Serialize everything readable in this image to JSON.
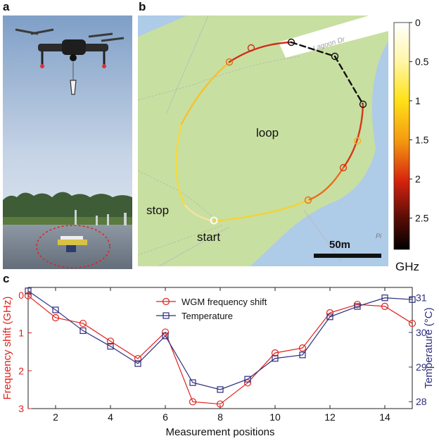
{
  "panels": {
    "a": {
      "letter": "a"
    },
    "b": {
      "letter": "b",
      "road_label": "Lagoon Dr",
      "corner_label": "Pi",
      "loop_label": "loop",
      "start_label": "start",
      "stop_label": "stop",
      "scale_label": "50m",
      "colorbar": {
        "ticks": [
          "0",
          "0.5",
          "1",
          "1.5",
          "2",
          "2.5"
        ],
        "tick_values": [
          0,
          0.5,
          1,
          1.5,
          2,
          2.5
        ],
        "range": [
          0,
          2.9
        ],
        "unit": "GHz"
      }
    },
    "c": {
      "letter": "c"
    }
  },
  "colors": {
    "wgm": "#e0201b",
    "temperature": "#2c2c7e",
    "water": "#aecbe8",
    "land": "#c8dfa2",
    "road": "#ffffff"
  },
  "chart_data": {
    "type": "line",
    "title": "",
    "xlabel": "Measurement positions",
    "ylabel_left": "Frequency shift (GHz)",
    "ylabel_right": "Temperature (°C)",
    "xlim": [
      1,
      15
    ],
    "ylim_left": [
      3,
      -0.2
    ],
    "ylim_right": [
      27.8,
      31.3
    ],
    "x_ticks": [
      2,
      4,
      6,
      8,
      10,
      12,
      14
    ],
    "y_left_ticks": [
      0,
      1,
      2,
      3
    ],
    "y_right_ticks": [
      28,
      29,
      30,
      31
    ],
    "legend_position": "top-center",
    "x": [
      1,
      2,
      3,
      4,
      5,
      6,
      7,
      8,
      9,
      10,
      11,
      12,
      13,
      14,
      15
    ],
    "series": [
      {
        "name": "WGM frequency shift",
        "axis": "left",
        "marker": "circle",
        "values": [
          0.02,
          0.6,
          0.75,
          1.22,
          1.68,
          0.98,
          2.82,
          2.88,
          2.32,
          1.53,
          1.4,
          0.47,
          0.25,
          0.3,
          0.75
        ]
      },
      {
        "name": "Temperature",
        "axis": "right",
        "marker": "square",
        "values": [
          31.2,
          30.65,
          30.05,
          29.6,
          29.1,
          29.9,
          28.55,
          28.35,
          28.65,
          29.25,
          29.35,
          30.45,
          30.75,
          31.0,
          30.95
        ]
      }
    ]
  }
}
